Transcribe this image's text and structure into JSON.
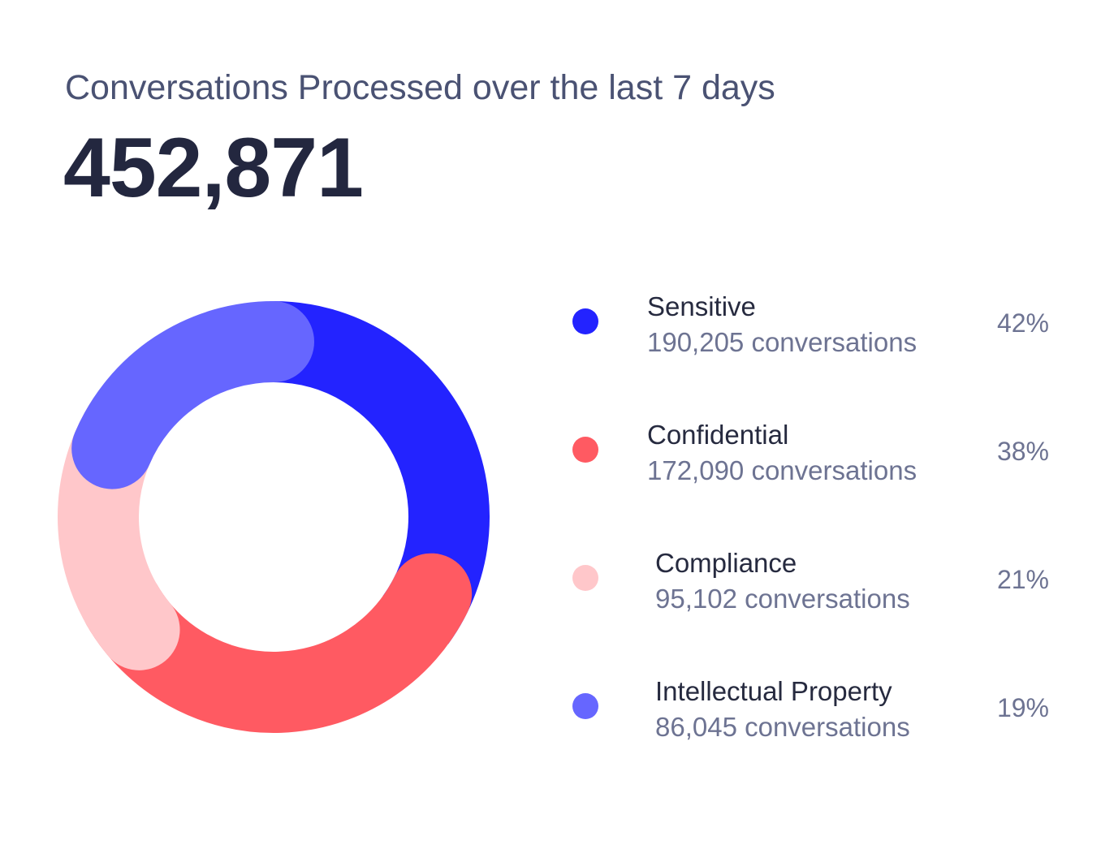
{
  "title": "Conversations Processed over the last 7 days",
  "total": "452,871",
  "chart_data": {
    "type": "pie",
    "title": "Conversations Processed over the last 7 days",
    "total": 452871,
    "series": [
      {
        "name": "Sensitive",
        "value": 190205,
        "count_label": "190,205 conversations",
        "percent": 42,
        "percent_label": "42%",
        "color": "#2323ff"
      },
      {
        "name": "Confidential",
        "value": 172090,
        "count_label": "172,090 conversations",
        "percent": 38,
        "percent_label": "38%",
        "color": "#ff5a62"
      },
      {
        "name": "Compliance",
        "value": 95102,
        "count_label": "95,102 conversations",
        "percent": 21,
        "percent_label": "21%",
        "color": "#ffc7ca"
      },
      {
        "name": "Intellectual Property",
        "value": 86045,
        "count_label": "86,045 conversations",
        "percent": 19,
        "percent_label": "19%",
        "color": "#6666ff"
      }
    ],
    "legend_position": "right"
  }
}
